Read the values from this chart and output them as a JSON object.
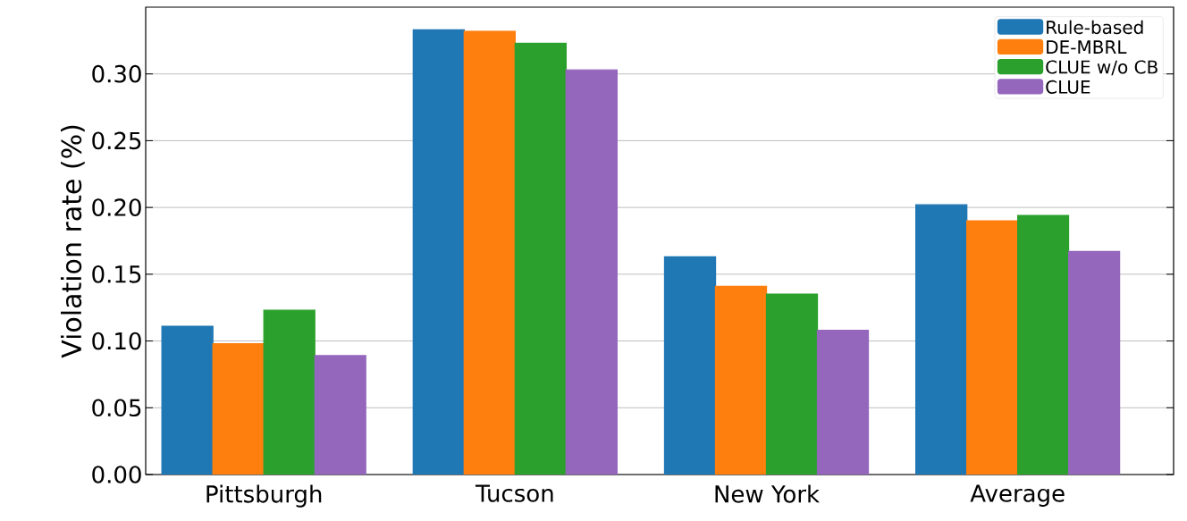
{
  "chart_data": {
    "type": "bar",
    "ylabel": "Violation rate (%)",
    "categories": [
      "Pittsburgh",
      "Tucson",
      "New York",
      "Average"
    ],
    "series": [
      {
        "name": "Rule-based",
        "color": "#1f77b4",
        "values": [
          0.111,
          0.333,
          0.163,
          0.202
        ]
      },
      {
        "name": "DE-MBRL",
        "color": "#ff7f0e",
        "values": [
          0.098,
          0.332,
          0.141,
          0.19
        ]
      },
      {
        "name": "CLUE w/o CB",
        "color": "#2ca02c",
        "values": [
          0.123,
          0.323,
          0.135,
          0.194
        ]
      },
      {
        "name": "CLUE",
        "color": "#9467bd",
        "values": [
          0.089,
          0.303,
          0.108,
          0.167
        ]
      }
    ],
    "ylim": [
      0,
      0.35
    ],
    "yticks": [
      {
        "value": 0,
        "label": "0.00"
      },
      {
        "value": 0.05,
        "label": "0.05"
      },
      {
        "value": 0.1,
        "label": "0.10"
      },
      {
        "value": 0.15,
        "label": "0.15"
      },
      {
        "value": 0.2,
        "label": "0.20"
      },
      {
        "value": 0.25,
        "label": "0.25"
      },
      {
        "value": 0.3,
        "label": "0.30"
      }
    ],
    "grid": "y",
    "legend": "top right"
  }
}
